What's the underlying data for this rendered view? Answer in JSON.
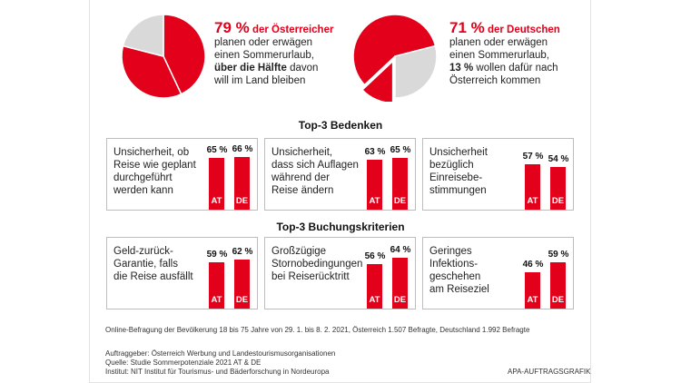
{
  "pies": [
    {
      "pct": "79 %",
      "pct_sub": "der Österreicher",
      "lines": [
        "planen oder erwägen",
        "einen Sommerurlaub,"
      ],
      "bold_line": "über die Hälfte",
      "bold_line_rest": " davon",
      "last_line": "will im Land bleiben"
    },
    {
      "pct": "71 %",
      "pct_sub": "der Deutschen",
      "lines": [
        "planen oder erwägen",
        "einen Sommerurlaub,"
      ],
      "bold_line": "13 %",
      "bold_line_rest": " wollen dafür nach",
      "last_line": "Österreich kommen"
    }
  ],
  "sections": {
    "bedenken_title": "Top-3 Bedenken",
    "buchung_title": "Top-3 Buchungskriterien"
  },
  "chart_data": [
    {
      "type": "pie",
      "name": "Österreicher",
      "slices": [
        {
          "label": "planen oder erwägen einen Sommerurlaub, davon im Land",
          "value": 43
        },
        {
          "label": "planen oder erwägen einen Sommerurlaub, davon nicht im Land",
          "value": 36
        },
        {
          "label": "rest",
          "value": 21
        }
      ],
      "colors": [
        "#e2001a",
        "#e2001a",
        "#d9d9d9"
      ]
    },
    {
      "type": "pie",
      "name": "Deutsche",
      "slices": [
        {
          "label": "wollen nach Österreich",
          "value": 13
        },
        {
          "label": "planen oder erwägen einen Sommerurlaub, andere",
          "value": 58
        },
        {
          "label": "rest",
          "value": 29
        }
      ],
      "colors": [
        "#e2001a",
        "#e2001a",
        "#d9d9d9"
      ]
    },
    {
      "type": "bar",
      "group": "Top-3 Bedenken",
      "items": [
        {
          "text": [
            "Unsicherheit, ob",
            "Reise wie geplant",
            "durchgeführt",
            "werden kann"
          ],
          "AT": 65,
          "DE": 66
        },
        {
          "text": [
            "Unsicherheit,",
            "dass sich Auflagen",
            "während der",
            "Reise ändern"
          ],
          "AT": 63,
          "DE": 65
        },
        {
          "text": [
            "Unsicherheit",
            "bezüglich",
            "Einreisebe-",
            "stimmungen"
          ],
          "AT": 57,
          "DE": 54
        }
      ]
    },
    {
      "type": "bar",
      "group": "Top-3 Buchungskriterien",
      "items": [
        {
          "text": [
            "Geld-zurück-",
            "Garantie, falls",
            "die Reise ausfällt"
          ],
          "AT": 59,
          "DE": 62
        },
        {
          "text": [
            "Großzügige",
            "Stornobedingungen",
            "bei Reiserücktritt"
          ],
          "AT": 56,
          "DE": 64
        },
        {
          "text": [
            "Geringes",
            "Infektions-",
            "geschehen",
            "am Reiseziel"
          ],
          "AT": 46,
          "DE": 59
        }
      ]
    }
  ],
  "bar_codes": {
    "at": "AT",
    "de": "DE"
  },
  "percent_suffix": " %",
  "colors": {
    "accent": "#e2001a",
    "grey": "#d9d9d9"
  },
  "footer": {
    "survey": "Online-Befragung der Bevölkerung 18 bis 75 Jahre von 29. 1. bis 8. 2. 2021, Österreich 1.507 Befragte, Deutschland 1.992 Befragte",
    "client": "Auftraggeber: Österreich Werbung und Landestourismusorganisationen",
    "source": "Quelle: Studie Sommerpotenziale 2021 AT & DE",
    "institute": "Institut: NIT Institut für Tourismus- und Bäderforschung in Nordeuropa",
    "credit": "APA-AUFTRAGSGRAFIK"
  }
}
